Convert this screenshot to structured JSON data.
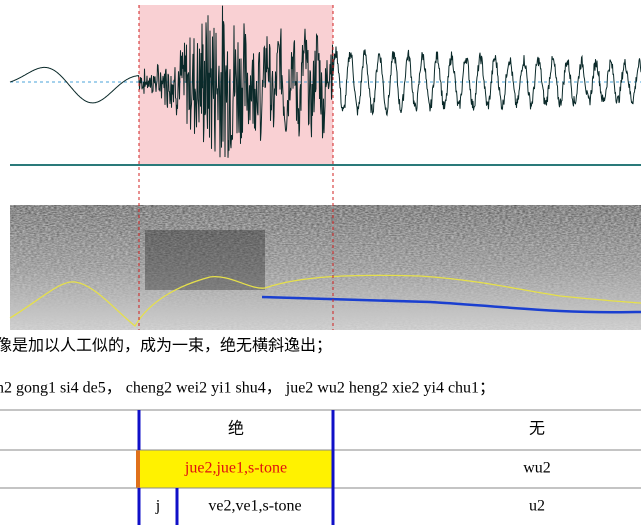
{
  "transcript": {
    "hanzi": "像是加以人工似的，成为一束，绝无横斜逸出；",
    "pinyin": "n2 gong1 si4 de5， cheng2 wei2 yi1 shu4， jue2 wu2 heng2 xie2 yi4 chu1；"
  },
  "tiers": [
    {
      "intervals": [
        "绝",
        "无"
      ]
    },
    {
      "intervals": [
        "jue2,jue1,s-tone",
        "wu2"
      ]
    },
    {
      "intervals": [
        "j",
        "ve2,ve1,s-tone",
        "u2"
      ]
    }
  ]
}
